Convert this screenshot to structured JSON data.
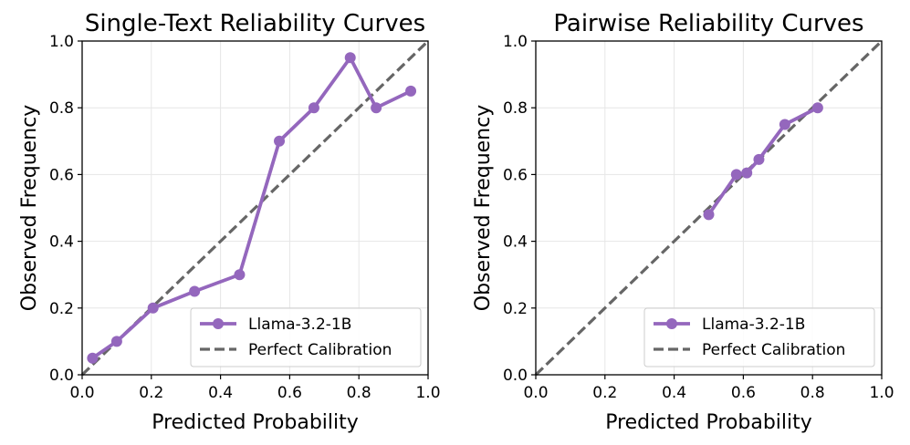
{
  "chart_data": [
    {
      "type": "line",
      "title": "Single-Text Reliability Curves",
      "xlabel": "Predicted Probability",
      "ylabel": "Observed Frequency",
      "xlim": [
        0,
        1
      ],
      "ylim": [
        0,
        1
      ],
      "xticks": [
        "0.0",
        "0.2",
        "0.4",
        "0.6",
        "0.8",
        "1.0"
      ],
      "yticks": [
        "0.0",
        "0.2",
        "0.4",
        "0.6",
        "0.8",
        "1.0"
      ],
      "grid": true,
      "legend_position": "lower-right",
      "series": [
        {
          "name": "Llama-3.2-1B",
          "color": "#9467bd",
          "x": [
            0.03,
            0.1,
            0.205,
            0.325,
            0.455,
            0.57,
            0.67,
            0.775,
            0.85,
            0.95
          ],
          "y": [
            0.05,
            0.1,
            0.2,
            0.25,
            0.3,
            0.7,
            0.8,
            0.95,
            0.8,
            0.85
          ]
        },
        {
          "name": "Perfect Calibration",
          "color": "#666666",
          "style": "dashed",
          "x": [
            0,
            1
          ],
          "y": [
            0,
            1
          ]
        }
      ]
    },
    {
      "type": "line",
      "title": "Pairwise Reliability Curves",
      "xlabel": "Predicted Probability",
      "ylabel": "Observed Frequency",
      "xlim": [
        0,
        1
      ],
      "ylim": [
        0,
        1
      ],
      "xticks": [
        "0.0",
        "0.2",
        "0.4",
        "0.6",
        "0.8",
        "1.0"
      ],
      "yticks": [
        "0.0",
        "0.2",
        "0.4",
        "0.6",
        "0.8",
        "1.0"
      ],
      "grid": true,
      "legend_position": "lower-right",
      "series": [
        {
          "name": "Llama-3.2-1B",
          "color": "#9467bd",
          "x": [
            0.5,
            0.58,
            0.61,
            0.645,
            0.72,
            0.815
          ],
          "y": [
            0.48,
            0.6,
            0.605,
            0.645,
            0.75,
            0.8
          ]
        },
        {
          "name": "Perfect Calibration",
          "color": "#666666",
          "style": "dashed",
          "x": [
            0,
            1
          ],
          "y": [
            0,
            1
          ]
        }
      ]
    }
  ]
}
